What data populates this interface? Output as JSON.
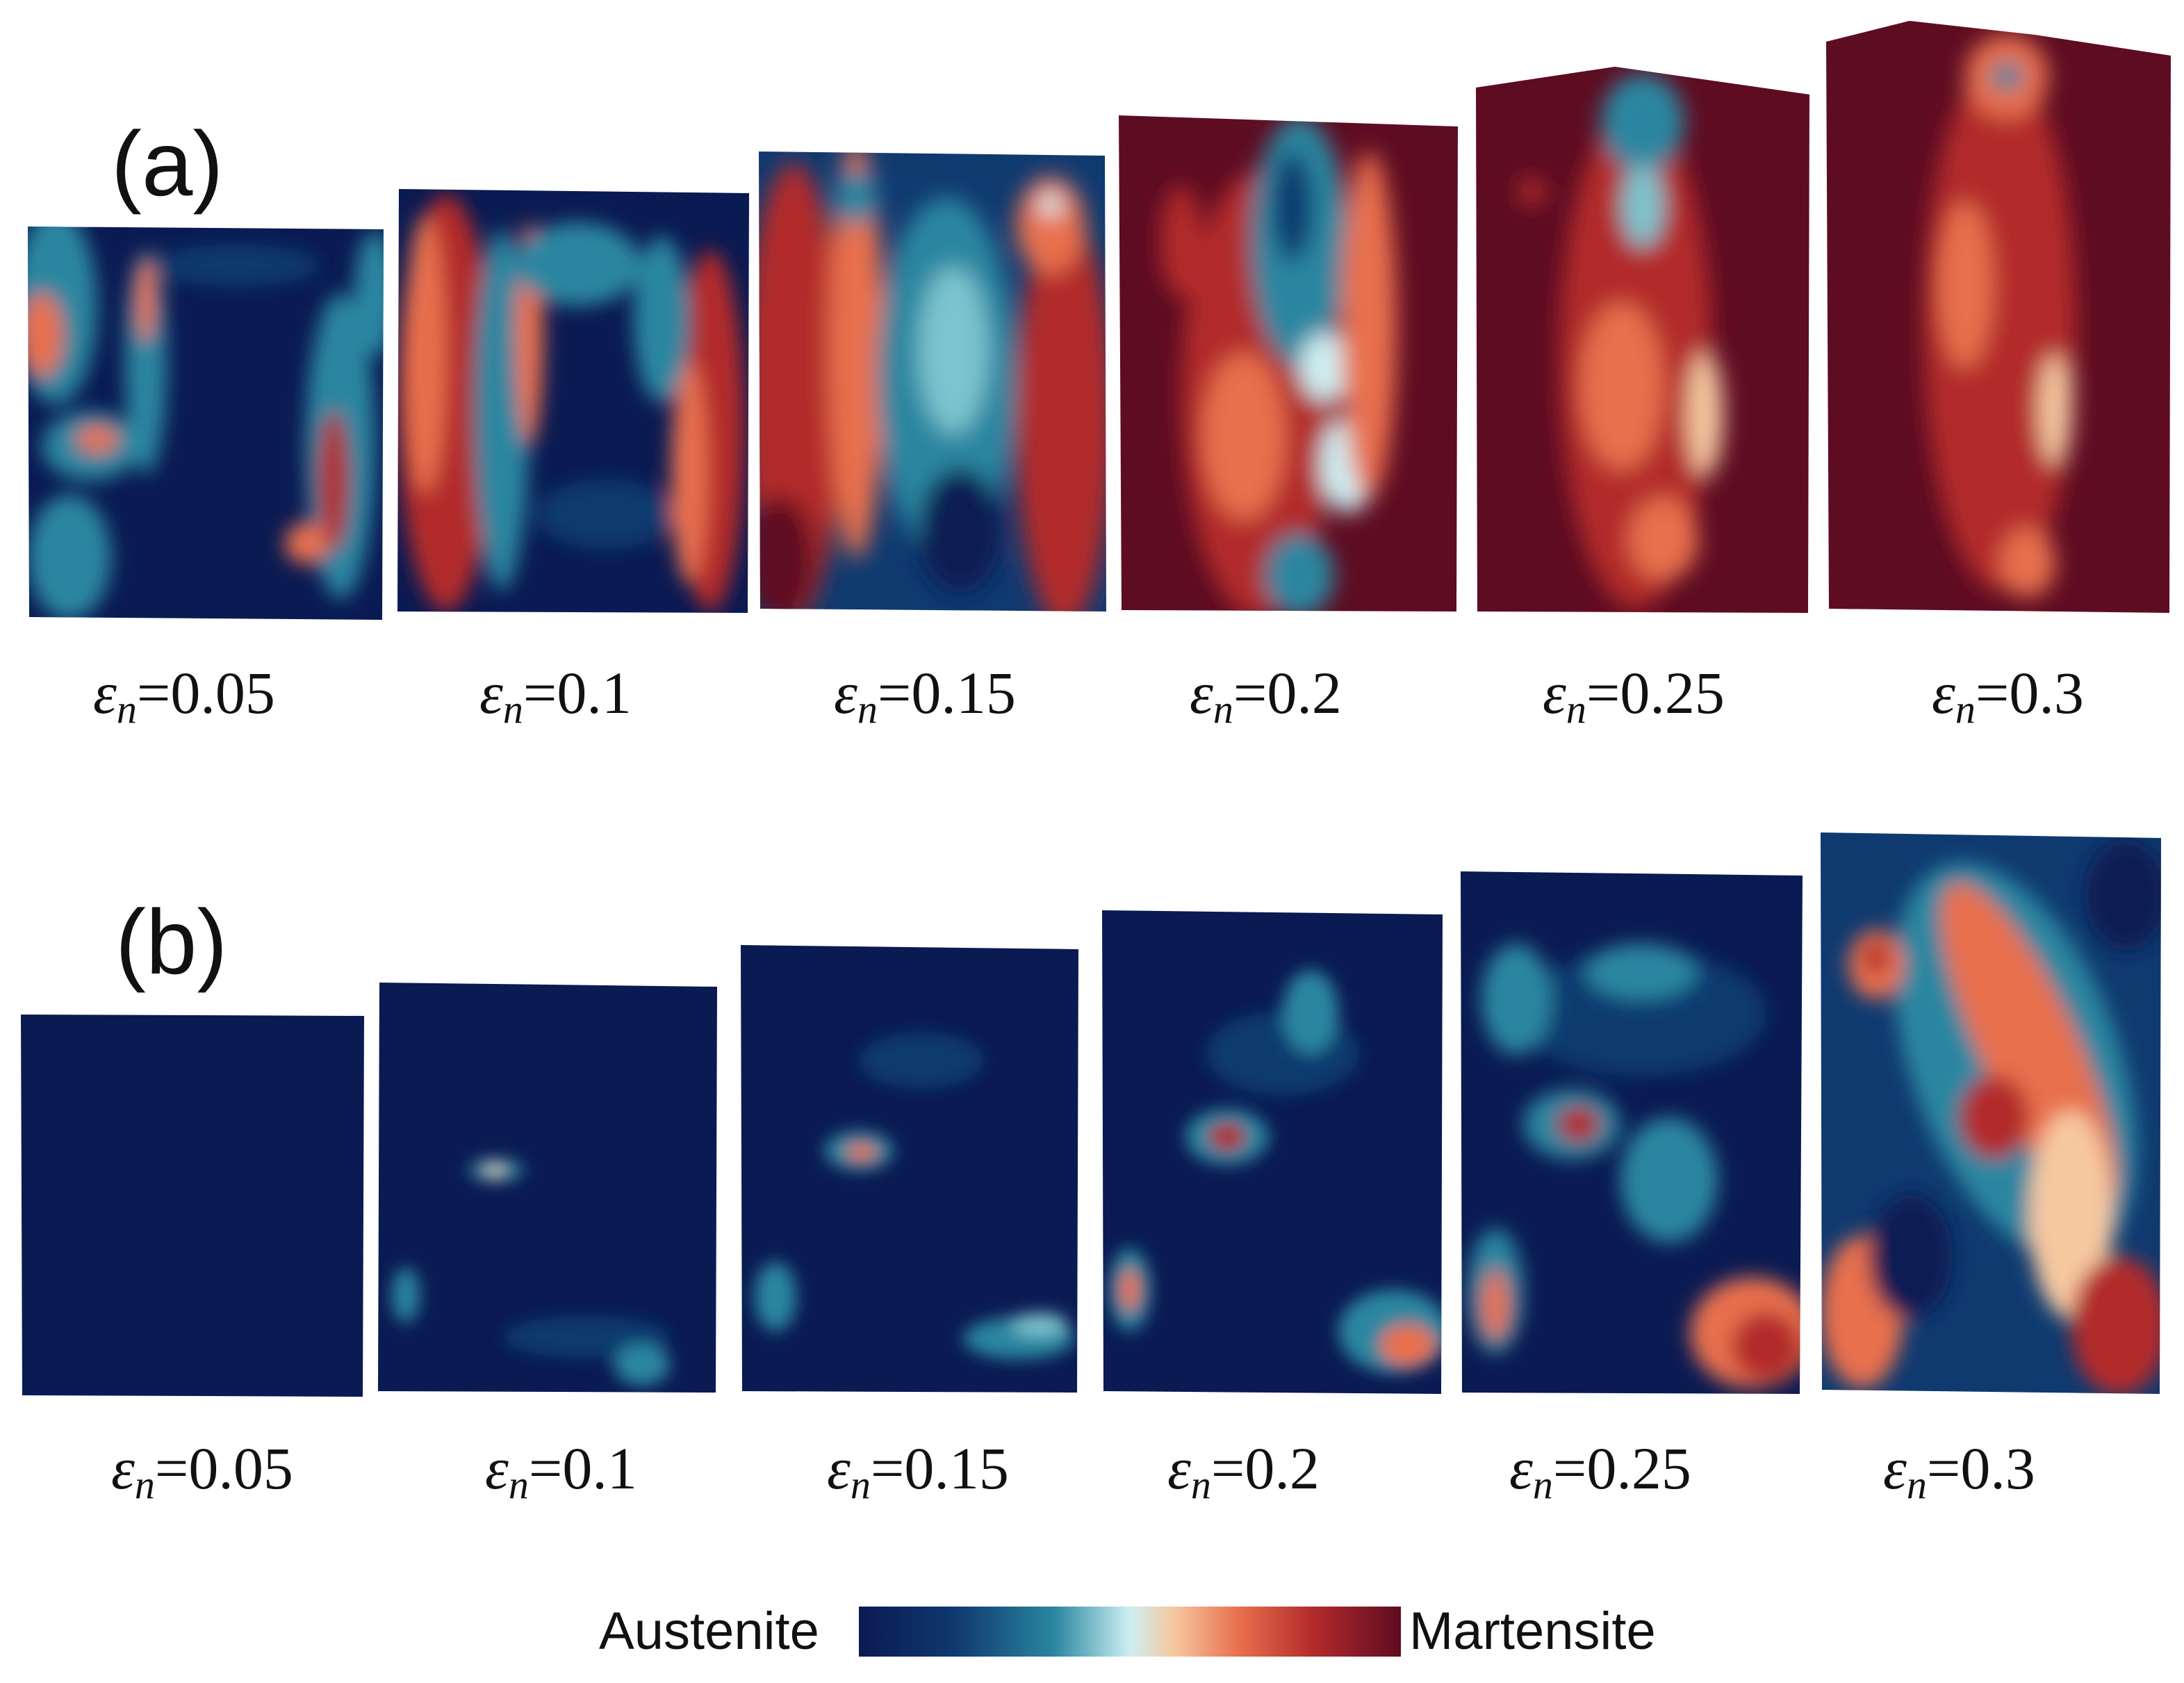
{
  "figure": {
    "panel_a_label": "(a)",
    "panel_b_label": "(b)",
    "symbol": "ε",
    "subscript": "n",
    "row_a_captions": [
      "=0.05",
      "=0.1",
      "=0.15",
      "=0.2",
      "=0.25",
      "=0.3"
    ],
    "row_b_captions": [
      "=0.05",
      "=0.1",
      "=0.15",
      "=0.2",
      "=0.25",
      "=0.3"
    ],
    "legend": {
      "left_label": "Austenite",
      "right_label": "Martensite"
    }
  },
  "colors": {
    "austenite": "#0a1a52",
    "transition": "#cdeff2",
    "martensite": "#5e0c22"
  }
}
